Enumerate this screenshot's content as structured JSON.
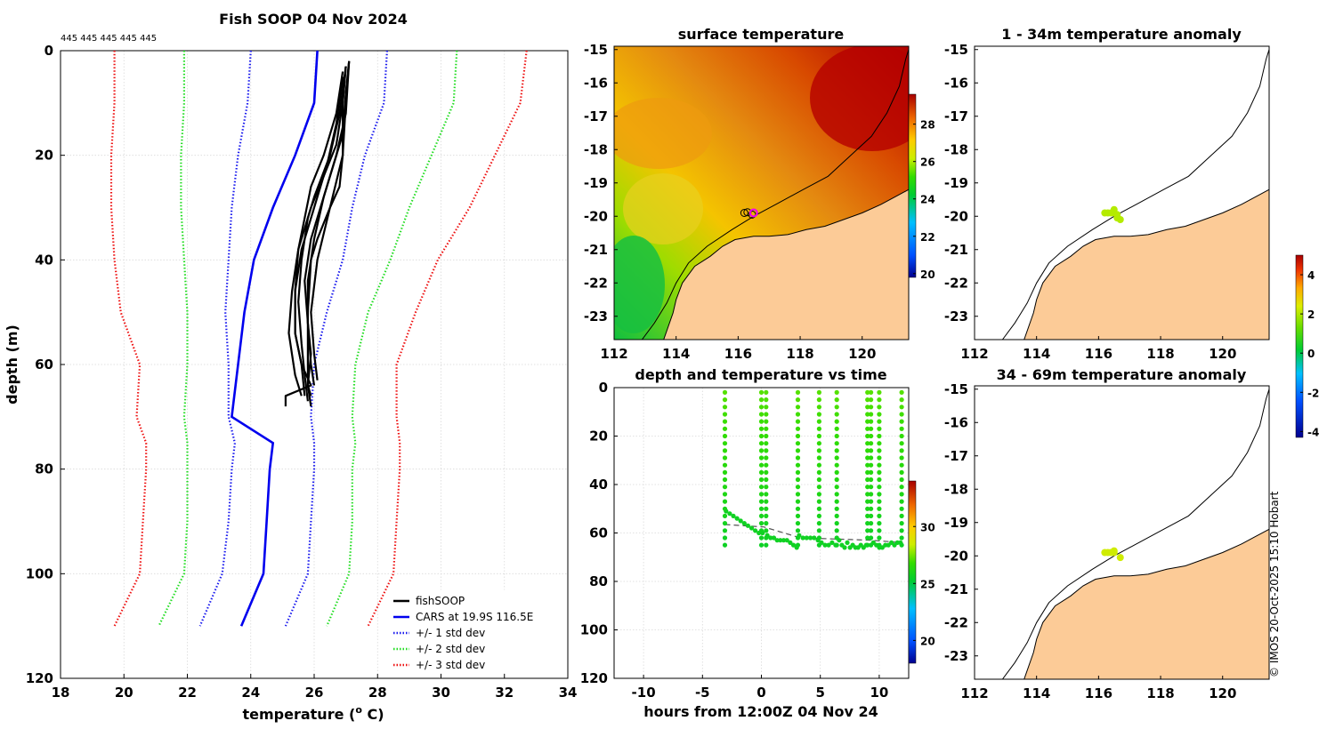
{
  "colors": {
    "cars": "#0000ee",
    "std1": "#1a1aee",
    "std2": "#22dd22",
    "std3": "#ee1111",
    "land": "#fccb97",
    "fish": "#000000"
  },
  "chart_data": [
    {
      "id": "profile",
      "type": "line",
      "title": "Fish SOOP 04 Nov 2024",
      "top_annotation": "445 445 445 445 445",
      "xlabel": "temperature (",
      "xlabel_sup": "o",
      "xlabel_tail": " C)",
      "ylabel": "depth (m)",
      "xlim": [
        18,
        34
      ],
      "ylim": [
        0,
        120
      ],
      "xticks": [
        18,
        20,
        22,
        24,
        26,
        28,
        30,
        32,
        34
      ],
      "yticks": [
        0,
        20,
        40,
        60,
        80,
        100,
        120
      ],
      "legend_position": "bottom-right",
      "legend": [
        "fishSOOP",
        "CARS at 19.9S 116.5E",
        "+/- 1 std dev",
        "+/- 2 std dev",
        "+/- 3 std dev"
      ],
      "depth": [
        0,
        10,
        20,
        30,
        40,
        50,
        60,
        70,
        75,
        80,
        90,
        100,
        110
      ],
      "cars_mean": [
        26.1,
        26.0,
        25.4,
        24.7,
        24.1,
        23.8,
        23.6,
        23.4,
        24.7,
        24.6,
        24.5,
        24.4,
        23.7
      ],
      "std1_lo": [
        24.0,
        23.9,
        23.6,
        23.4,
        23.3,
        23.2,
        23.3,
        23.3,
        23.5,
        23.4,
        23.3,
        23.1,
        22.4
      ],
      "std1_hi": [
        28.3,
        28.2,
        27.6,
        27.2,
        26.9,
        26.4,
        26.0,
        25.9,
        26.0,
        26.0,
        25.9,
        25.8,
        25.1
      ],
      "std2_lo": [
        21.9,
        21.9,
        21.8,
        21.8,
        21.9,
        22.0,
        22.0,
        21.9,
        22.0,
        22.0,
        22.0,
        21.9,
        21.1
      ],
      "std2_hi": [
        30.5,
        30.4,
        29.7,
        29.0,
        28.4,
        27.7,
        27.3,
        27.2,
        27.3,
        27.2,
        27.2,
        27.1,
        26.4
      ],
      "std3_lo": [
        19.7,
        19.7,
        19.6,
        19.6,
        19.7,
        19.9,
        20.5,
        20.4,
        20.7,
        20.7,
        20.6,
        20.5,
        19.7
      ],
      "std3_hi": [
        32.7,
        32.5,
        31.7,
        30.9,
        29.9,
        29.2,
        28.6,
        28.6,
        28.7,
        28.7,
        28.6,
        28.5,
        27.7
      ],
      "fish_profiles": [
        {
          "depth": [
            2,
            10,
            20,
            26,
            30,
            36,
            40,
            50,
            58,
            64,
            66
          ],
          "temp": [
            27.1,
            27.0,
            26.9,
            26.8,
            26.5,
            26.1,
            25.9,
            25.8,
            25.8,
            25.8,
            25.9
          ]
        },
        {
          "depth": [
            3,
            12,
            20,
            28,
            32,
            40,
            48,
            56,
            62,
            67
          ],
          "temp": [
            27.0,
            26.8,
            26.5,
            26.0,
            25.8,
            25.6,
            25.5,
            25.6,
            25.7,
            25.8
          ]
        },
        {
          "depth": [
            2,
            8,
            16,
            24,
            30,
            36,
            44,
            52,
            58,
            64,
            68
          ],
          "temp": [
            27.1,
            27.0,
            26.9,
            26.5,
            26.2,
            25.9,
            25.7,
            25.8,
            25.9,
            25.8,
            25.9
          ]
        },
        {
          "depth": [
            4,
            12,
            20,
            26,
            32,
            38,
            46,
            54,
            60,
            66
          ],
          "temp": [
            26.9,
            26.7,
            26.3,
            25.9,
            25.7,
            25.5,
            25.4,
            25.4,
            25.6,
            25.7
          ]
        },
        {
          "depth": [
            3,
            10,
            18,
            24,
            30,
            38,
            46,
            54,
            62,
            66
          ],
          "temp": [
            27.0,
            26.9,
            26.7,
            26.3,
            25.9,
            25.5,
            25.3,
            25.2,
            25.4,
            25.6
          ]
        },
        {
          "depth": [
            5,
            14,
            22,
            30,
            38,
            46,
            54,
            60,
            64,
            66,
            68
          ],
          "temp": [
            26.9,
            26.7,
            26.4,
            26.0,
            25.6,
            25.4,
            25.4,
            25.6,
            25.9,
            25.1,
            25.1
          ]
        },
        {
          "depth": [
            2,
            12,
            20,
            28,
            36,
            44,
            52,
            60,
            64
          ],
          "temp": [
            27.1,
            27.0,
            26.7,
            26.3,
            26.0,
            25.8,
            25.8,
            25.9,
            26.0
          ]
        },
        {
          "depth": [
            3,
            10,
            20,
            30,
            40,
            50,
            58,
            63
          ],
          "temp": [
            27.0,
            26.9,
            26.9,
            26.5,
            26.1,
            25.9,
            26.0,
            26.1
          ]
        }
      ]
    },
    {
      "id": "sst_map",
      "type": "heatmap",
      "title": "surface temperature",
      "xlim": [
        112,
        121.5
      ],
      "ylim": [
        -23.7,
        -14.9
      ],
      "xticks": [
        112,
        114,
        116,
        118,
        120
      ],
      "yticks": [
        -15,
        -16,
        -17,
        -18,
        -19,
        -20,
        -21,
        -22,
        -23
      ],
      "colorbar_ticks": [
        20,
        22,
        24,
        26,
        28
      ],
      "colorbar_range": [
        19.8,
        29.6
      ],
      "obs_location": [
        116.5,
        -19.9
      ]
    },
    {
      "id": "depth_time",
      "type": "scatter",
      "title": "depth and temperature vs time",
      "xlabel": "hours from 12:00Z 04 Nov 24",
      "xlim": [
        -12.5,
        12.5
      ],
      "ylim": [
        0,
        120
      ],
      "xticks": [
        -10,
        -5,
        0,
        5,
        10
      ],
      "yticks": [
        0,
        20,
        40,
        60,
        80,
        100,
        120
      ],
      "colorbar_ticks": [
        20,
        25,
        30
      ],
      "colorbar_range": [
        18,
        34
      ],
      "bottom_depth_dashed": [
        [
          -3.1,
          56.5
        ],
        [
          0.2,
          57.5
        ],
        [
          3.3,
          62
        ],
        [
          6.3,
          62.5
        ],
        [
          9.3,
          63
        ],
        [
          12,
          64
        ]
      ],
      "segments": [
        {
          "t0": -3.0,
          "t1": 0.1,
          "bottom": [
            51,
            52,
            53,
            54,
            55,
            56,
            57,
            58,
            59,
            60,
            60
          ]
        },
        {
          "t0": 0.5,
          "t1": 3.0,
          "bottom": [
            61,
            62,
            62,
            63,
            63,
            63,
            63,
            64,
            65,
            66
          ]
        },
        {
          "t0": 3.2,
          "t1": 4.8,
          "bottom": [
            61,
            62,
            62,
            62,
            62,
            63
          ]
        },
        {
          "t0": 5.1,
          "t1": 6.3,
          "bottom": [
            64,
            65,
            65,
            64,
            65
          ]
        },
        {
          "t0": 6.6,
          "t1": 8.9,
          "bottom": [
            63,
            65,
            66,
            64,
            66,
            65,
            66,
            66,
            65,
            66,
            65
          ]
        },
        {
          "t0": 9.5,
          "t1": 11.8,
          "bottom": [
            64,
            65,
            66,
            66,
            65,
            65,
            64,
            65,
            64,
            64
          ]
        }
      ],
      "casts": [
        -3.1,
        0.0,
        0.4,
        3.1,
        4.9,
        6.4,
        9.0,
        9.3,
        10.0,
        11.9
      ]
    },
    {
      "id": "anom_top",
      "type": "scatter",
      "title": "1 - 34m temperature anomaly",
      "xlim": [
        112,
        121.5
      ],
      "ylim": [
        -23.7,
        -14.9
      ],
      "xticks": [
        112,
        114,
        116,
        118,
        120
      ],
      "yticks": [
        -15,
        -16,
        -17,
        -18,
        -19,
        -20,
        -21,
        -22,
        -23
      ],
      "colorbar_ticks": [
        -4,
        -2,
        0,
        2,
        4
      ],
      "colorbar_range": [
        -4.3,
        5.0
      ],
      "points": [
        [
          116.2,
          -19.9
        ],
        [
          116.3,
          -19.9
        ],
        [
          116.4,
          -19.9
        ],
        [
          116.5,
          -19.9
        ],
        [
          116.5,
          -19.8
        ],
        [
          116.6,
          -19.95
        ],
        [
          116.6,
          -20.05
        ],
        [
          116.7,
          -20.1
        ]
      ]
    },
    {
      "id": "anom_bottom",
      "type": "scatter",
      "title": "34 - 69m temperature anomaly",
      "xlim": [
        112,
        121.5
      ],
      "ylim": [
        -23.7,
        -14.9
      ],
      "xticks": [
        112,
        114,
        116,
        118,
        120
      ],
      "yticks": [
        -15,
        -16,
        -17,
        -18,
        -19,
        -20,
        -21,
        -22,
        -23
      ],
      "points": [
        [
          116.2,
          -19.9
        ],
        [
          116.3,
          -19.9
        ],
        [
          116.4,
          -19.9
        ],
        [
          116.5,
          -19.9
        ],
        [
          116.5,
          -19.85
        ],
        [
          116.7,
          -20.05
        ]
      ]
    }
  ],
  "footer": {
    "credit": "© IMOS 20-Oct-2025 15:10 Hobart"
  }
}
